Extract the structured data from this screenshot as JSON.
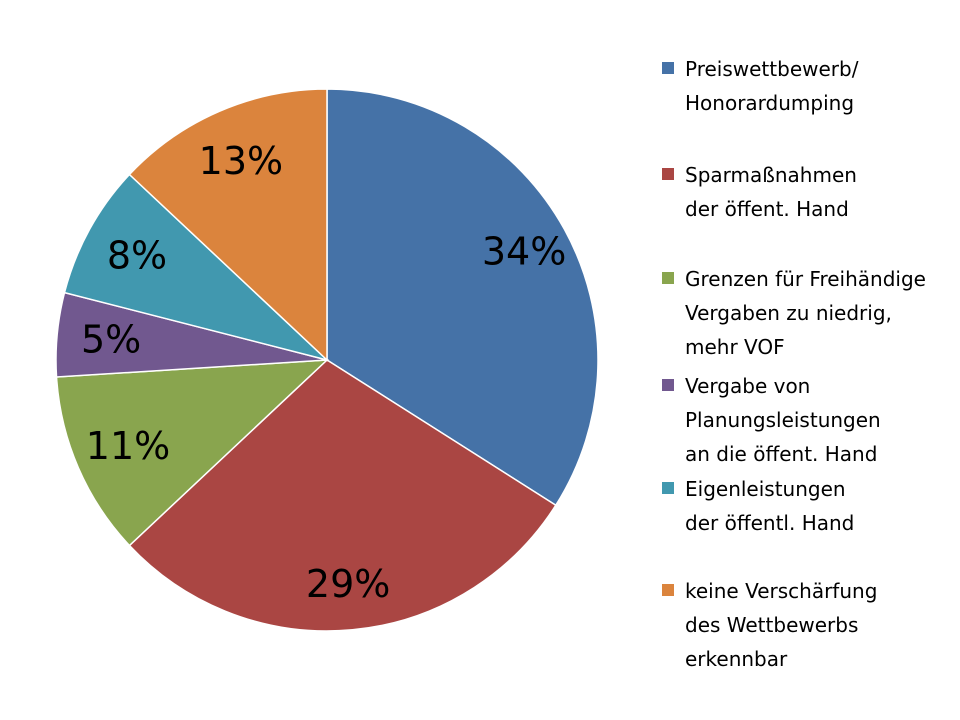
{
  "chart_data": {
    "type": "pie",
    "categories": [
      "Preiswettbewerb/ Honorardumping",
      "Sparmaßnahmen der öffent. Hand",
      "Grenzen für Freihändige Vergaben zu niedrig, mehr VOF",
      "Vergabe von Planungsleistungen an die öffent. Hand",
      "Eigenleistungen der öffentl. Hand",
      "keine Verschärfung des Wettbewerbs erkennbar"
    ],
    "values": [
      34,
      29,
      11,
      5,
      8,
      13
    ],
    "labels": [
      "34%",
      "29%",
      "11%",
      "5%",
      "8%",
      "13%"
    ],
    "colors": [
      "#4572A7",
      "#AA4643",
      "#89A54E",
      "#71588F",
      "#4198AF",
      "#DB843D"
    ],
    "legend": {
      "position": "right",
      "entries": [
        [
          "Preiswettbewerb/",
          "Honorardumping"
        ],
        [
          "Sparmaßnahmen",
          "der öffent. Hand"
        ],
        [
          "Grenzen für Freihändige",
          "Vergaben zu niedrig,",
          "mehr VOF"
        ],
        [
          "Vergabe von",
          "Planungsleistungen",
          "an die öffent. Hand"
        ],
        [
          "Eigenleistungen",
          "der öffentl. Hand"
        ],
        [
          "keine Verschärfung",
          "des Wettbewerbs",
          "erkennbar"
        ]
      ]
    },
    "start": "12 o'clock",
    "direction": "clockwise"
  }
}
